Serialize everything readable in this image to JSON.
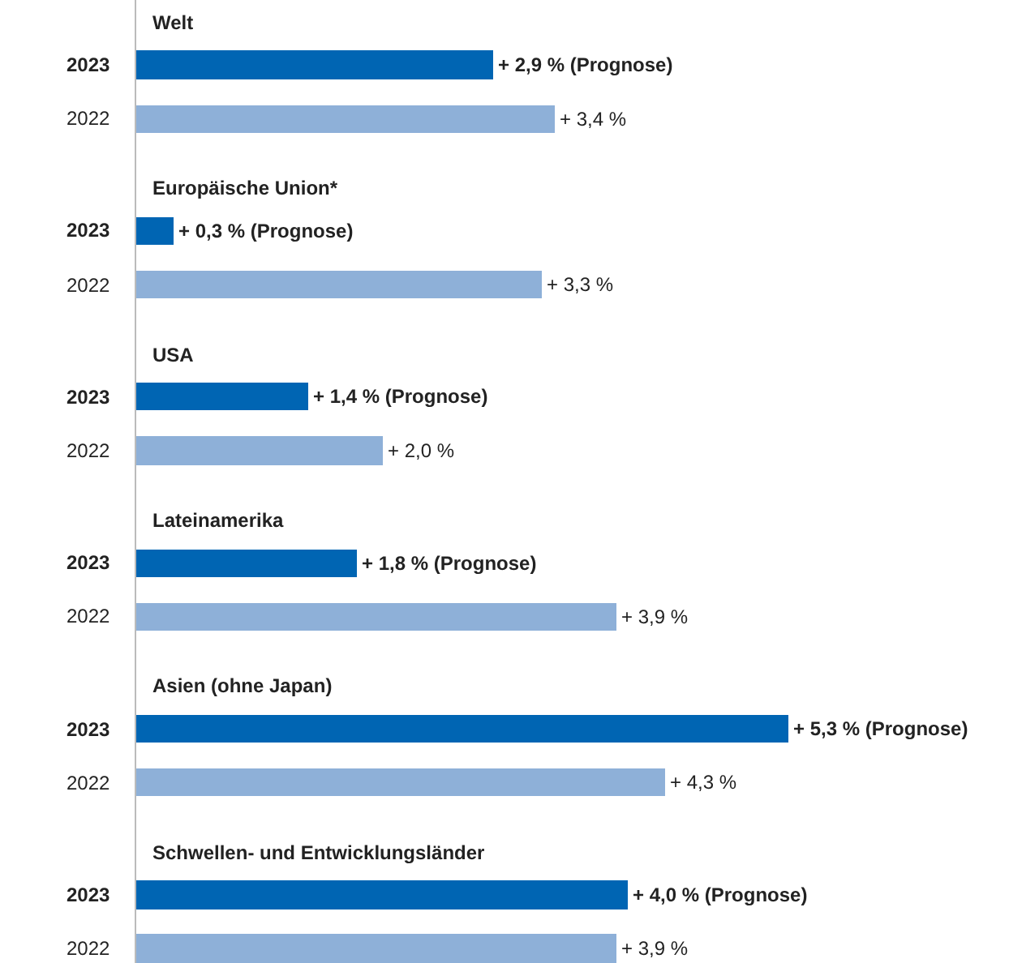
{
  "chart_data": {
    "type": "bar",
    "orientation": "horizontal",
    "categories": [
      "Welt",
      "Europäische Union*",
      "USA",
      "Lateinamerika",
      "Asien (ohne Japan)",
      "Schwellen- und Entwicklungsländer"
    ],
    "series": [
      {
        "name": "2023",
        "color": "#0065b3",
        "values": [
          2.9,
          0.3,
          1.4,
          1.8,
          5.3,
          4.0
        ],
        "value_labels": [
          "+ 2,9 % (Prognose)",
          "+ 0,3 % (Prognose)",
          "+ 1,4 % (Prognose)",
          "+ 1,8 % (Prognose)",
          "+ 5,3 % (Prognose)",
          "+ 4,0 % (Prognose)"
        ]
      },
      {
        "name": "2022",
        "color": "#8eb0d8",
        "values": [
          3.4,
          3.3,
          2.0,
          3.9,
          4.3,
          3.9
        ],
        "value_labels": [
          "+ 3,4 %",
          "+ 3,3 %",
          "+ 2,0 %",
          "+ 3,9 %",
          "+ 4,3 %",
          "+ 3,9 %"
        ]
      }
    ],
    "xlim": [
      0,
      7.1
    ]
  }
}
